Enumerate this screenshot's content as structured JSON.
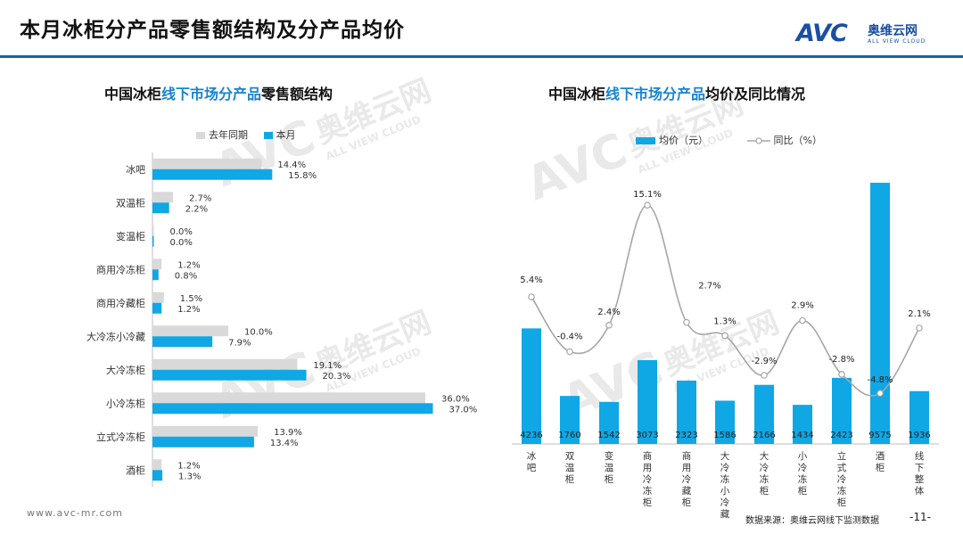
{
  "header": {
    "title": "本月冰柜分产品零售额结构及分产品均价",
    "brand_mark": "AVC",
    "brand_name": "奥维云网",
    "brand_sub": "ALL VIEW CLOUD"
  },
  "watermark": {
    "mark": "AVC",
    "name": "奥维云网",
    "sub": "ALL VIEW CLOUD"
  },
  "left_chart_title": {
    "pre": "中国冰柜",
    "hl": "线下市场分产品",
    "post": "零售额结构"
  },
  "right_chart_title": {
    "pre": "中国冰柜",
    "hl": "线下市场分产品",
    "post": "均价及同比情况"
  },
  "colors": {
    "last_year": "#d9d9d9",
    "this_month": "#10a7e5",
    "line": "#a6a6a6",
    "title_accent": "#1a83d0"
  },
  "chart_data": [
    {
      "type": "bar",
      "orientation": "horizontal",
      "title": "中国冰柜线下市场分产品零售额结构",
      "categories": [
        "冰吧",
        "双温柜",
        "变温柜",
        "商用冷冻柜",
        "商用冷藏柜",
        "大冷冻小冷藏",
        "大冷冻柜",
        "小冷冻柜",
        "立式冷冻柜",
        "酒柜"
      ],
      "series": [
        {
          "name": "去年同期",
          "values": [
            14.4,
            2.7,
            0.0,
            1.2,
            1.5,
            10.0,
            19.1,
            36.0,
            13.9,
            1.2
          ],
          "labels": [
            "14.4%",
            "2.7%",
            "0.0%",
            "1.2%",
            "1.5%",
            "10.0%",
            "19.1%",
            "36.0%",
            "13.9%",
            "1.2%"
          ]
        },
        {
          "name": "本月",
          "values": [
            15.8,
            2.2,
            0.0,
            0.8,
            1.2,
            7.9,
            20.3,
            37.0,
            13.4,
            1.3
          ],
          "labels": [
            "15.8%",
            "2.2%",
            "0.0%",
            "0.8%",
            "1.2%",
            "7.9%",
            "20.3%",
            "37.0%",
            "13.4%",
            "1.3%"
          ]
        }
      ],
      "legend": "top",
      "xlim": [
        0,
        40
      ]
    },
    {
      "type": "bar+line",
      "title": "中国冰柜线下市场分产品均价及同比情况",
      "categories": [
        "冰吧",
        "双温柜",
        "变温柜",
        "商用冷冻柜",
        "商用冷藏柜",
        "大冷冻小冷藏",
        "大冷冻柜",
        "小冷冻柜",
        "立式冷冻柜",
        "酒柜",
        "线下整体"
      ],
      "bars": {
        "name": "均价（元）",
        "values": [
          4236,
          1760,
          1542,
          3073,
          2323,
          1586,
          2166,
          1434,
          2423,
          9575,
          1936
        ],
        "labels": [
          "4236",
          "1760",
          "1542",
          "3073",
          "2323",
          "1586",
          "2166",
          "1434",
          "2423",
          "9575",
          "1936"
        ]
      },
      "line": {
        "name": "同比（%）",
        "values": [
          5.4,
          -0.4,
          2.4,
          15.1,
          2.7,
          1.3,
          -2.9,
          2.9,
          -2.8,
          -4.8,
          2.1
        ],
        "labels": [
          "5.4%",
          "-0.4%",
          "2.4%",
          "15.1%",
          "2.7%",
          "1.3%",
          "-2.9%",
          "2.9%",
          "-2.8%",
          "-4.8%",
          "2.1%"
        ]
      },
      "legend": "top",
      "bar_ylim": [
        0,
        10000
      ],
      "line_ylim": [
        -8,
        16
      ]
    }
  ],
  "footer": {
    "url": "www.avc-mr.com",
    "source": "数据来源：奥维云网线下监测数据",
    "page": "-11-"
  }
}
